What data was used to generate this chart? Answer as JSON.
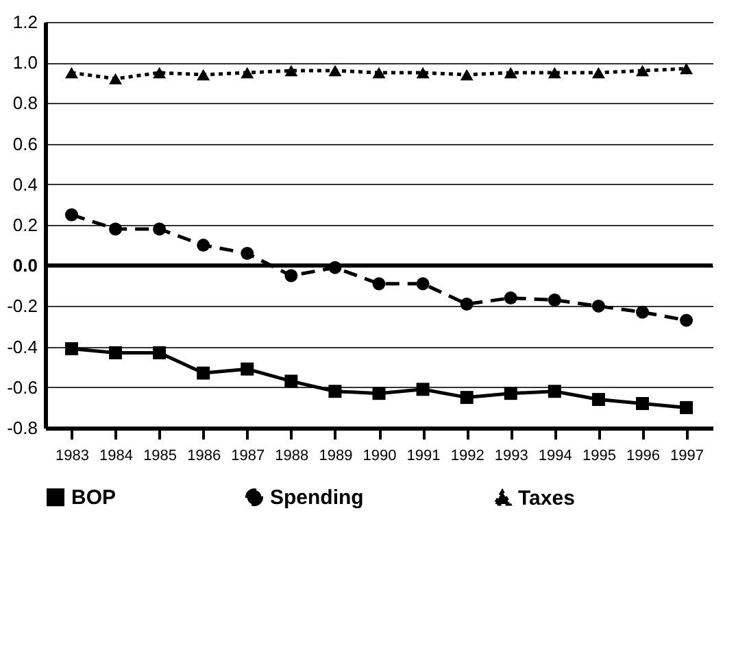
{
  "chart_data": {
    "type": "line",
    "categories": [
      "1983",
      "1984",
      "1985",
      "1986",
      "1987",
      "1988",
      "1989",
      "1990",
      "1991",
      "1992",
      "1993",
      "1994",
      "1995",
      "1996",
      "1997"
    ],
    "series": [
      {
        "name": "BOP",
        "color": "#000000",
        "marker": "square",
        "line_style": "solid",
        "values": [
          -0.41,
          -0.43,
          -0.43,
          -0.53,
          -0.51,
          -0.57,
          -0.62,
          -0.63,
          -0.61,
          -0.65,
          -0.63,
          -0.62,
          -0.66,
          -0.68,
          -0.7
        ]
      },
      {
        "name": "Spending",
        "color": "#000000",
        "marker": "circle",
        "line_style": "dashed",
        "values": [
          0.25,
          0.18,
          0.18,
          0.1,
          0.06,
          -0.05,
          -0.01,
          -0.09,
          -0.09,
          -0.19,
          -0.16,
          -0.17,
          -0.2,
          -0.23,
          -0.27
        ]
      },
      {
        "name": "Taxes",
        "color": "#000000",
        "marker": "triangle",
        "line_style": "dotted",
        "values": [
          0.95,
          0.92,
          0.95,
          0.94,
          0.95,
          0.96,
          0.96,
          0.95,
          0.95,
          0.94,
          0.95,
          0.95,
          0.95,
          0.96,
          0.97
        ]
      }
    ],
    "ylim": [
      -0.8,
      1.2
    ],
    "yticks": [
      {
        "value": -0.8,
        "label": "-0.8"
      },
      {
        "value": -0.6,
        "label": "-0.6"
      },
      {
        "value": -0.4,
        "label": "-0.4"
      },
      {
        "value": -0.2,
        "label": "-0.2"
      },
      {
        "value": 0,
        "label": "0.0"
      },
      {
        "value": 0.2,
        "label": "0.2"
      },
      {
        "value": 0.4,
        "label": "0.4"
      },
      {
        "value": 0.6,
        "label": "0.6"
      },
      {
        "value": 0.8,
        "label": "0.8"
      },
      {
        "value": 1.0,
        "label": "1.0"
      },
      {
        "value": 1.2,
        "label": "1.2"
      }
    ],
    "ref_lines": [
      {
        "axis": "y",
        "value": 0,
        "color": "#000000"
      }
    ],
    "grid": "y",
    "legend": "bottom"
  }
}
